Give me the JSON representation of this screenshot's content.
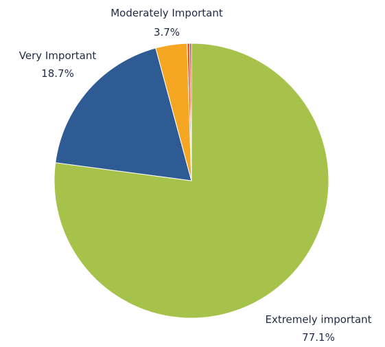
{
  "chart_data": {
    "type": "pie",
    "title": "",
    "slices": [
      {
        "label": "Extremely important",
        "value": 77.1,
        "display": "77.1%",
        "color": "#a6c24a"
      },
      {
        "label": "Very Important",
        "value": 18.7,
        "display": "18.7%",
        "color": "#2e5b94"
      },
      {
        "label": "Moderately Important",
        "value": 3.7,
        "display": "3.7%",
        "color": "#f5a623"
      },
      {
        "label": "",
        "value": 0.3,
        "display": "",
        "color": "#e8531f"
      },
      {
        "label": "",
        "value": 0.2,
        "display": "",
        "color": "#c0392b"
      }
    ]
  }
}
